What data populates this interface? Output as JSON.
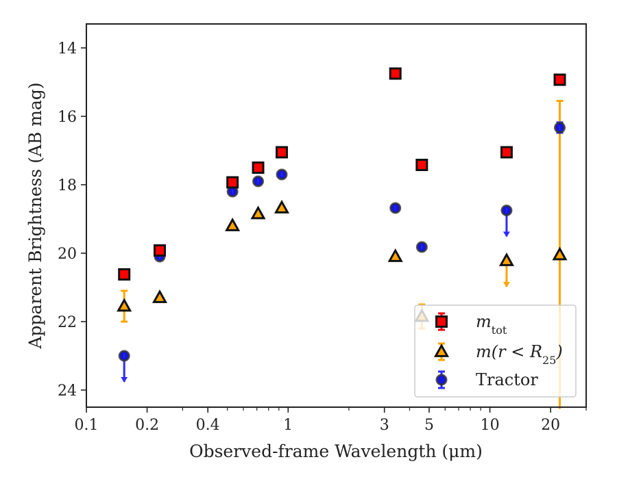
{
  "chart_data": {
    "type": "scatter",
    "xlabel": "Observed-frame Wavelength (μm)",
    "ylabel": "Apparent Brightness (AB mag)",
    "xscale": "log",
    "xlim": [
      0.1,
      30
    ],
    "ylim": [
      24.5,
      13.3
    ],
    "y_inverted": true,
    "x_ticks": [
      {
        "value": 0.1,
        "label": "0.1"
      },
      {
        "value": 0.2,
        "label": "0.2"
      },
      {
        "value": 0.4,
        "label": "0.4"
      },
      {
        "value": 1,
        "label": "1"
      },
      {
        "value": 3,
        "label": "3"
      },
      {
        "value": 5,
        "label": "5"
      },
      {
        "value": 10,
        "label": "10"
      },
      {
        "value": 20,
        "label": "20"
      }
    ],
    "y_ticks": [
      14,
      16,
      18,
      20,
      22,
      24
    ],
    "grid": false,
    "legend_position": "lower-right",
    "series": [
      {
        "name": "m_tot",
        "legend_main": "m",
        "legend_sub": "tot",
        "marker": "square",
        "color": "#ff0000",
        "edge": "#111111",
        "errcolor": "#ff0000",
        "points": [
          {
            "x": 0.154,
            "y": 20.62
          },
          {
            "x": 0.231,
            "y": 19.92
          },
          {
            "x": 0.53,
            "y": 17.93
          },
          {
            "x": 0.71,
            "y": 17.5
          },
          {
            "x": 0.93,
            "y": 17.05
          },
          {
            "x": 3.4,
            "y": 14.75
          },
          {
            "x": 4.6,
            "y": 17.42
          },
          {
            "x": 12.1,
            "y": 17.05
          },
          {
            "x": 22.2,
            "y": 14.93
          }
        ]
      },
      {
        "name": "m(r<R25)",
        "legend_main": "m(r < R",
        "legend_sub": "25",
        "legend_tail": ")",
        "marker": "triangle",
        "color": "#ffa500",
        "edge": "#111111",
        "errcolor": "#ffa500",
        "points": [
          {
            "x": 0.154,
            "y": 21.55,
            "yerr": 0.45
          },
          {
            "x": 0.231,
            "y": 21.3
          },
          {
            "x": 0.53,
            "y": 19.2
          },
          {
            "x": 0.71,
            "y": 18.85
          },
          {
            "x": 0.93,
            "y": 18.68
          },
          {
            "x": 3.4,
            "y": 20.1
          },
          {
            "x": 4.6,
            "y": 21.85,
            "yerr": 0.35
          },
          {
            "x": 12.1,
            "y": 20.22,
            "upper_limit": true
          },
          {
            "x": 22.2,
            "y": 20.05,
            "yerr": 4.5
          }
        ]
      },
      {
        "name": "Tractor",
        "legend_main": "Tractor",
        "marker": "circle",
        "color": "#1515e0",
        "edge": "#333333",
        "errcolor": "#2b2bff",
        "points": [
          {
            "x": 0.154,
            "y": 23.0,
            "upper_limit": true
          },
          {
            "x": 0.231,
            "y": 20.1
          },
          {
            "x": 0.53,
            "y": 18.2
          },
          {
            "x": 0.71,
            "y": 17.9
          },
          {
            "x": 0.93,
            "y": 17.7
          },
          {
            "x": 3.4,
            "y": 18.68
          },
          {
            "x": 4.6,
            "y": 19.82
          },
          {
            "x": 12.1,
            "y": 18.75,
            "upper_limit": true
          },
          {
            "x": 22.2,
            "y": 16.33,
            "yerr": 0.15
          }
        ]
      }
    ]
  }
}
